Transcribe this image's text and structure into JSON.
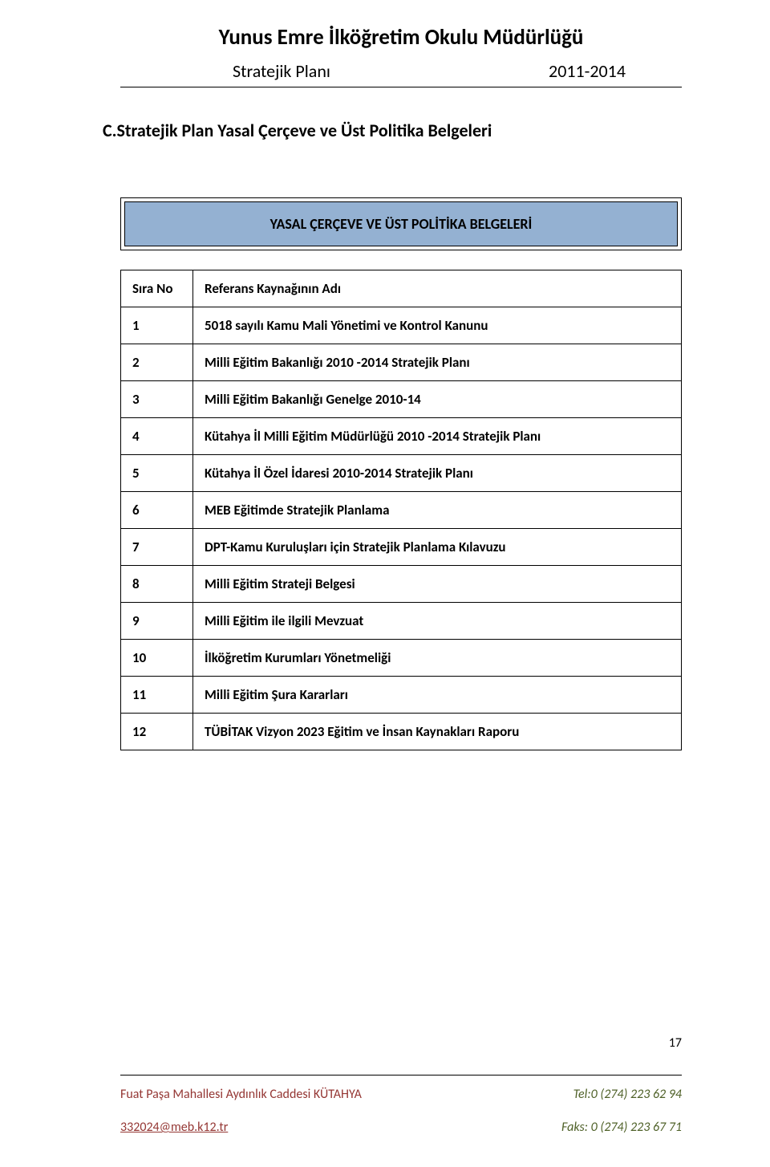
{
  "doc": {
    "title": "Yunus Emre İlköğretim Okulu Müdürlüğü",
    "subtitle_left": "Stratejik Planı",
    "subtitle_right": "2011-2014"
  },
  "section_heading": "C.Stratejik Plan Yasal Çerçeve ve Üst Politika Belgeleri",
  "band": {
    "text": "YASAL ÇERÇEVE VE ÜST POLİTİKA BELGELERİ",
    "bg_color": "#94b1d2",
    "text_color": "#000000"
  },
  "table": {
    "headers": {
      "no": "Sıra No",
      "ref": "Referans Kaynağının Adı"
    },
    "rows": [
      {
        "no": "1",
        "ref": "5018 sayılı Kamu Mali Yönetimi ve Kontrol Kanunu"
      },
      {
        "no": "2",
        "ref": "Milli Eğitim Bakanlığı 2010 -2014 Stratejik Planı"
      },
      {
        "no": "3",
        "ref": "Milli Eğitim Bakanlığı Genelge 2010-14"
      },
      {
        "no": "4",
        "ref": "Kütahya İl Milli Eğitim Müdürlüğü 2010 -2014 Stratejik Planı"
      },
      {
        "no": "5",
        "ref": "Kütahya İl Özel İdaresi 2010-2014 Stratejik Planı"
      },
      {
        "no": "6",
        "ref": "MEB Eğitimde Stratejik Planlama"
      },
      {
        "no": "7",
        "ref": "DPT-Kamu Kuruluşları için Stratejik Planlama Kılavuzu"
      },
      {
        "no": "8",
        "ref": "Milli Eğitim Strateji Belgesi"
      },
      {
        "no": "9",
        "ref": "Milli Eğitim ile ilgili Mevzuat"
      },
      {
        "no": "10",
        "ref": "İlköğretim Kurumları Yönetmeliği"
      },
      {
        "no": "11",
        "ref": "Milli Eğitim Şura Kararları"
      },
      {
        "no": "12",
        "ref": "TÜBİTAK Vizyon 2023 Eğitim ve İnsan Kaynakları Raporu"
      }
    ]
  },
  "footer": {
    "page_number": "17",
    "line1_left": "Fuat Paşa Mahallesi Aydınlık Caddesi KÜTAHYA",
    "line1_right": "Tel:0 (274) 223 62 94",
    "line2_left": "332024@meb.k12.tr",
    "line2_right": "Faks: 0 (274) 223 67 71",
    "accent1_color": "#943633",
    "accent2_color": "#4f6128"
  }
}
